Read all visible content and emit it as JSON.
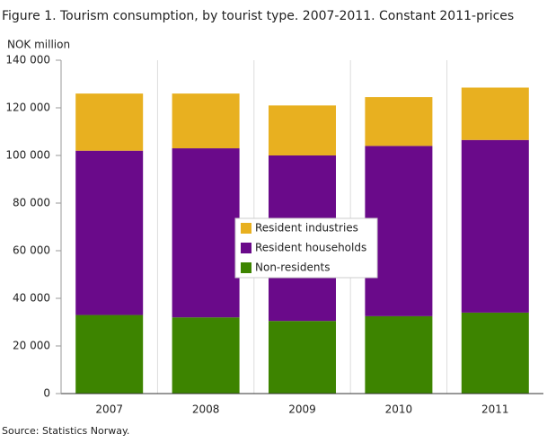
{
  "chart_data": {
    "type": "stacked-bar",
    "title": "Figure 1. Tourism consumption, by tourist type. 2007-2011. Constant 2011-prices",
    "y_label": "NOK million",
    "source": "Source: Statistics Norway.",
    "categories": [
      "2007",
      "2008",
      "2009",
      "2010",
      "2011"
    ],
    "series": [
      {
        "name": "Non-residents",
        "color": "#3d8400",
        "values": [
          33000,
          32000,
          30500,
          32500,
          34000
        ]
      },
      {
        "name": "Resident households",
        "color": "#6a0a8a",
        "values": [
          69000,
          71000,
          69500,
          71500,
          72500
        ]
      },
      {
        "name": "Resident industries",
        "color": "#e8b020",
        "values": [
          24000,
          23000,
          21000,
          20500,
          22000
        ]
      }
    ],
    "ylim": [
      0,
      140000
    ],
    "yticks": [
      0,
      {
        "value": 20000,
        "label": "20 000"
      },
      {
        "value": 40000,
        "label": "40 000"
      },
      {
        "value": 60000,
        "label": "60 000"
      },
      {
        "value": 80000,
        "label": "80 000"
      },
      {
        "value": 100000,
        "label": "100 000"
      },
      {
        "value": 120000,
        "label": "120 000"
      },
      {
        "value": 140000,
        "label": "140 000"
      }
    ],
    "grid": true,
    "legend": "center"
  }
}
